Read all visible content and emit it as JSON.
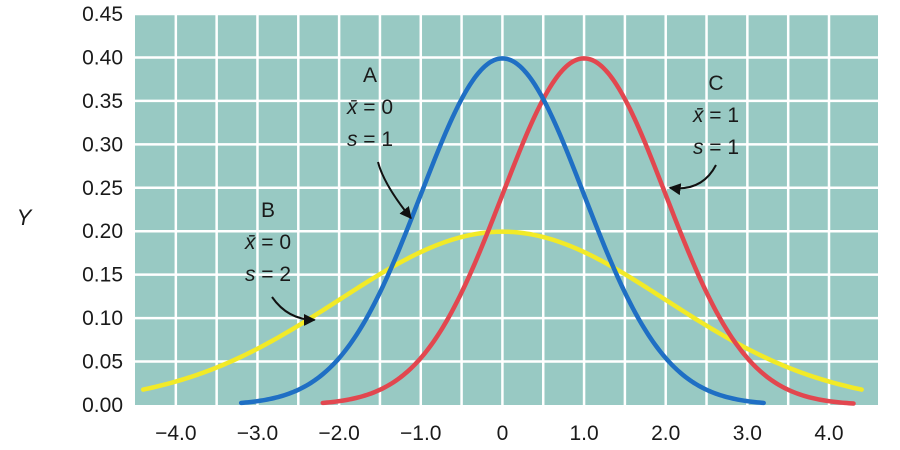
{
  "chart_data": {
    "type": "line",
    "ylabel": "Y",
    "xlim": [
      -4.5,
      4.6
    ],
    "ylim": [
      0,
      0.45
    ],
    "x_ticks": [
      "-4.0",
      "-3.0",
      "-2.0",
      "-1.0",
      "0",
      "1.0",
      "2.0",
      "3.0",
      "4.0"
    ],
    "x_tick_values": [
      -4,
      -3,
      -2,
      -1,
      0,
      1,
      2,
      3,
      4
    ],
    "y_ticks": [
      "0.00",
      "0.05",
      "0.10",
      "0.15",
      "0.20",
      "0.25",
      "0.30",
      "0.35",
      "0.40",
      "0.45"
    ],
    "y_tick_values": [
      0,
      0.05,
      0.1,
      0.15,
      0.2,
      0.25,
      0.3,
      0.35,
      0.4,
      0.45
    ],
    "grid": true,
    "background_color": "#98c9c3",
    "grid_color": "#ffffff",
    "series": [
      {
        "name": "A",
        "mean": 0,
        "sd": 1,
        "color": "#1f6fc4",
        "x": [
          -3.2,
          -3.0,
          -2.5,
          -2.0,
          -1.5,
          -1.0,
          -0.5,
          0,
          0.5,
          1.0,
          1.5,
          2.0,
          2.5,
          3.0,
          3.2
        ],
        "y": [
          0.0024,
          0.0044,
          0.0175,
          0.054,
          0.1295,
          0.242,
          0.352,
          0.399,
          0.352,
          0.242,
          0.1295,
          0.054,
          0.0175,
          0.0044,
          0.0024
        ]
      },
      {
        "name": "B",
        "mean": 0,
        "sd": 2,
        "color": "#f2ea27",
        "x": [
          -4.4,
          -4.0,
          -3.0,
          -2.0,
          -1.0,
          0,
          1.0,
          2.0,
          3.0,
          4.0,
          4.4
        ],
        "y": [
          0.0178,
          0.027,
          0.0648,
          0.121,
          0.176,
          0.1995,
          0.176,
          0.121,
          0.0648,
          0.027,
          0.0178
        ]
      },
      {
        "name": "C",
        "mean": 1,
        "sd": 1,
        "color": "#e2474f",
        "x": [
          -2.2,
          -2.0,
          -1.5,
          -1.0,
          -0.5,
          0,
          0.5,
          1.0,
          1.5,
          2.0,
          2.5,
          3.0,
          3.5,
          4.0,
          4.3
        ],
        "y": [
          0.0024,
          0.0044,
          0.0175,
          0.054,
          0.1295,
          0.242,
          0.352,
          0.399,
          0.352,
          0.242,
          0.1295,
          0.054,
          0.0175,
          0.0044,
          0.0017
        ]
      }
    ],
    "annotations": [
      {
        "id": "A",
        "label": "A",
        "mean_label": "x̄ = 0",
        "sd_label": "s = 1",
        "series": "A"
      },
      {
        "id": "B",
        "label": "B",
        "mean_label": "x̄ = 0",
        "sd_label": "s = 2",
        "series": "B"
      },
      {
        "id": "C",
        "label": "C",
        "mean_label": "x̄ = 1",
        "sd_label": "s = 1",
        "series": "C"
      }
    ]
  }
}
